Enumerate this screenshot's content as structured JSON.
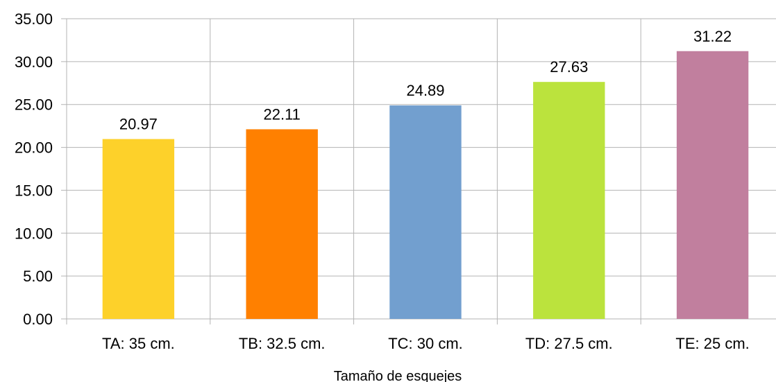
{
  "chart_data": {
    "type": "bar",
    "categories": [
      "TA: 35 cm.",
      "TB: 32.5 cm.",
      "TC: 30 cm.",
      "TD: 27.5 cm.",
      "TE: 25 cm."
    ],
    "values": [
      20.97,
      22.11,
      24.89,
      27.63,
      31.22
    ],
    "value_labels": [
      "20.97",
      "22.11",
      "24.89",
      "27.63",
      "31.22"
    ],
    "colors": [
      "#fdd12a",
      "#ff8000",
      "#729fcf",
      "#bbe33d",
      "#c17f9e"
    ],
    "title": "",
    "xlabel": "Tamaño de esquejes",
    "ylabel": "",
    "ylim": [
      0,
      35
    ],
    "yticks": [
      "0.00",
      "5.00",
      "10.00",
      "15.00",
      "20.00",
      "25.00",
      "30.00",
      "35.00"
    ],
    "grid": true,
    "legend": "none"
  }
}
